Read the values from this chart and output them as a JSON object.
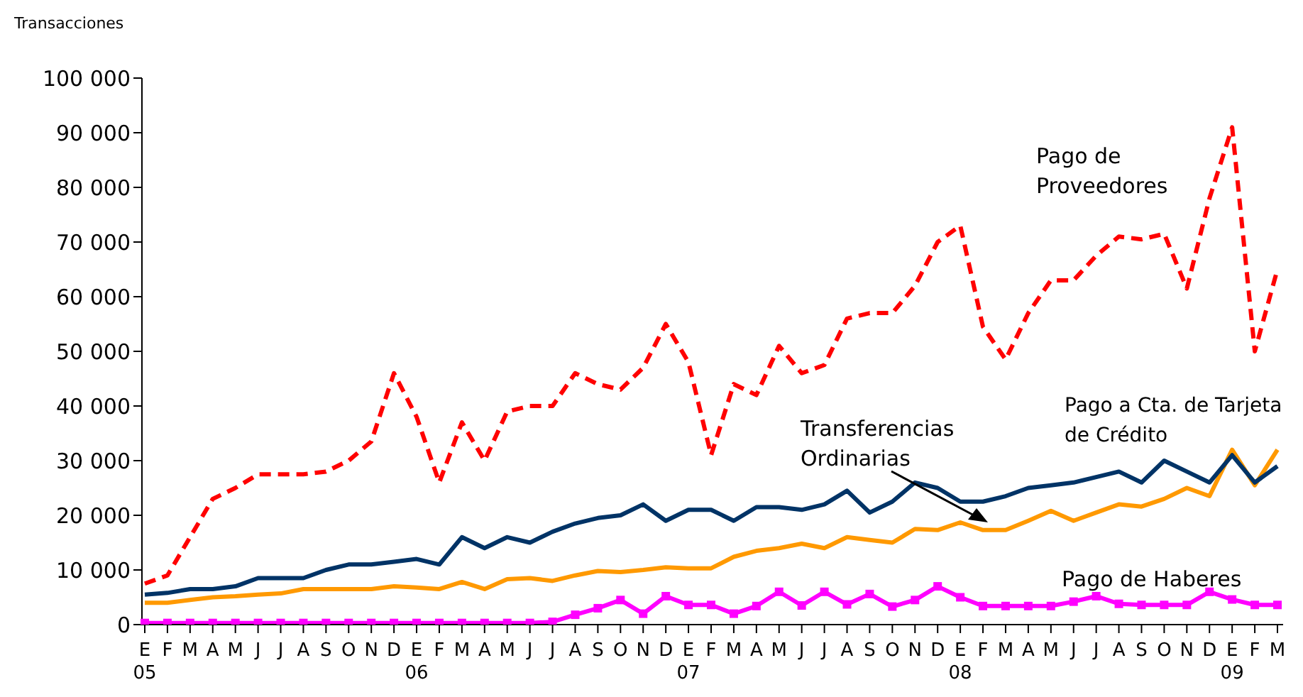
{
  "chart_data": {
    "type": "line",
    "ylabel": "Transacciones",
    "categories": [
      "E\n05",
      "F",
      "M",
      "A",
      "M",
      "J",
      "J",
      "A",
      "S",
      "O",
      "N",
      "D",
      "E\n06",
      "F",
      "M",
      "A",
      "M",
      "J",
      "J",
      "A",
      "S",
      "O",
      "N",
      "D",
      "E\n07",
      "F",
      "M",
      "A",
      "M",
      "J",
      "J",
      "A",
      "S",
      "O",
      "N",
      "D",
      "E\n08",
      "F",
      "M",
      "A",
      "M",
      "J",
      "J",
      "A",
      "S",
      "O",
      "N",
      "D",
      "E\n09",
      "F",
      "M"
    ],
    "ylim": [
      0,
      100000
    ],
    "yticks": [
      0,
      10000,
      20000,
      30000,
      40000,
      50000,
      60000,
      70000,
      80000,
      90000,
      100000
    ],
    "grid": false,
    "legend": false,
    "series": [
      {
        "name": "Pago de Proveedores",
        "color": "#ff0000",
        "line_style": "dashed",
        "marker": "none",
        "values": [
          7500,
          9000,
          16000,
          23000,
          25000,
          27500,
          27500,
          27500,
          28000,
          30000,
          33500,
          46000,
          38000,
          26000,
          37000,
          30000,
          39000,
          40000,
          40000,
          46000,
          44000,
          43000,
          47000,
          55000,
          48000,
          31000,
          44000,
          42000,
          51000,
          46000,
          47500,
          56000,
          57000,
          57000,
          62000,
          70000,
          73000,
          54500,
          48500,
          57000,
          63000,
          63000,
          67500,
          71000,
          70500,
          71500,
          61500,
          78000,
          91000,
          50000,
          65000
        ]
      },
      {
        "name": "Pago a Cta. de Tarjeta de Crédito",
        "color": "#ff9900",
        "line_style": "solid",
        "marker": "none",
        "values": [
          4000,
          4000,
          4500,
          5000,
          5200,
          5500,
          5700,
          6500,
          6500,
          6500,
          6500,
          7000,
          6800,
          6500,
          7800,
          6500,
          8300,
          8500,
          8000,
          9000,
          9800,
          9600,
          10000,
          10500,
          10300,
          10300,
          12400,
          13500,
          14000,
          14800,
          14000,
          16000,
          15500,
          15000,
          17500,
          17300,
          18700,
          17300,
          17300,
          19000,
          20800,
          19000,
          20500,
          22000,
          21600,
          23000,
          25000,
          23500,
          32000,
          25500,
          32000
        ]
      },
      {
        "name": "Transferencias Ordinarias",
        "color": "#003366",
        "line_style": "solid",
        "marker": "none",
        "values": [
          5500,
          5800,
          6500,
          6500,
          7000,
          8500,
          8500,
          8500,
          10000,
          11000,
          11000,
          11500,
          12000,
          11000,
          16000,
          14000,
          16000,
          15000,
          17000,
          18500,
          19500,
          20000,
          22000,
          19000,
          21000,
          21000,
          19000,
          21500,
          21500,
          21000,
          22000,
          24500,
          20500,
          22500,
          26000,
          25000,
          22500,
          22500,
          23500,
          25000,
          25500,
          26000,
          27000,
          28000,
          26000,
          30000,
          28000,
          26000,
          31000,
          26000,
          29000
        ]
      },
      {
        "name": "Pago de Haberes",
        "color": "#ff00ff",
        "line_style": "solid",
        "marker": "square",
        "values": [
          300,
          300,
          300,
          300,
          300,
          300,
          300,
          300,
          300,
          300,
          300,
          300,
          300,
          300,
          300,
          300,
          300,
          300,
          500,
          1800,
          3000,
          4500,
          2000,
          5200,
          3600,
          3600,
          2000,
          3400,
          6000,
          3500,
          6000,
          3700,
          5600,
          3300,
          4500,
          7000,
          5000,
          3400,
          3400,
          3400,
          3400,
          4200,
          5200,
          3800,
          3600,
          3600,
          3600,
          6000,
          4600,
          3600,
          3600
        ]
      }
    ]
  }
}
